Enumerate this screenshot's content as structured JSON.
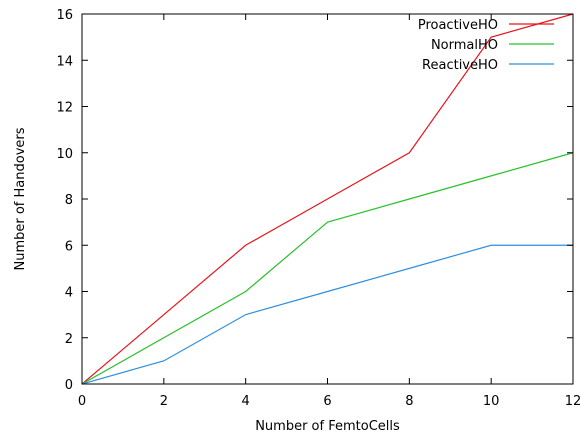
{
  "chart_data": {
    "type": "line",
    "title": "",
    "xlabel": "Number of FemtoCells",
    "ylabel": "Number of Handovers",
    "xlim": [
      0,
      12
    ],
    "ylim": [
      0,
      16
    ],
    "xticks": [
      0,
      2,
      4,
      6,
      8,
      10,
      12
    ],
    "yticks": [
      0,
      2,
      4,
      6,
      8,
      10,
      12,
      14,
      16
    ],
    "grid": false,
    "legend_position": "top-right",
    "series": [
      {
        "name": "ProactiveHO",
        "color": "#e8141c",
        "x": [
          0,
          4,
          6,
          8,
          10,
          12
        ],
        "y": [
          0,
          6,
          8,
          10,
          15,
          16
        ]
      },
      {
        "name": "NormalHO",
        "color": "#2ac02a",
        "x": [
          0,
          4,
          6,
          8,
          10,
          12
        ],
        "y": [
          0,
          4,
          7,
          8,
          9,
          10
        ]
      },
      {
        "name": "ReactiveHO",
        "color": "#2f8fe0",
        "x": [
          0,
          2,
          4,
          6,
          8,
          10,
          12
        ],
        "y": [
          0,
          1,
          3,
          4,
          5,
          6,
          6
        ]
      }
    ]
  }
}
